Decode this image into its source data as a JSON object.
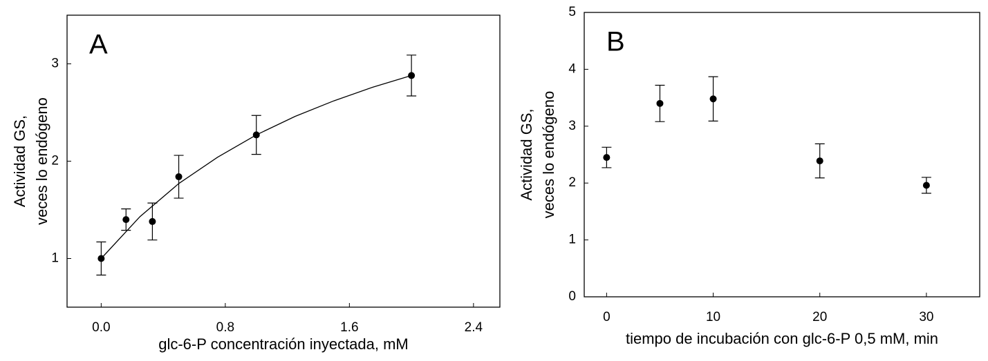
{
  "chart_data": [
    {
      "type": "scatter",
      "title": "A",
      "x_label": "glc-6-P concentración inyectada, mM",
      "y_label": [
        "Actividad GS,",
        "veces lo endógeno"
      ],
      "x": [
        0.0,
        0.16,
        0.33,
        0.5,
        1.0,
        2.0
      ],
      "series": [
        {
          "color": "#000000",
          "values": [
            1.0,
            1.4,
            1.38,
            1.84,
            2.27,
            2.88
          ],
          "errors": [
            0.17,
            0.11,
            0.19,
            0.22,
            0.2,
            0.21
          ]
        }
      ],
      "fit": {
        "x": [
          0,
          0.25,
          0.5,
          0.75,
          1,
          1.25,
          1.5,
          1.75,
          2
        ],
        "values": [
          1,
          1.43,
          1.77,
          2.04,
          2.27,
          2.46,
          2.62,
          2.76,
          2.88
        ]
      },
      "xlim": [
        -0.22,
        2.57
      ],
      "ylim": [
        0.5,
        3.5
      ],
      "xticks": [
        {
          "value": 0,
          "label": "0.0"
        },
        0.8,
        1.6,
        2.4
      ],
      "yticks": [
        1,
        2,
        3
      ]
    },
    {
      "type": "scatter",
      "title": "B",
      "x_label": "tiempo de incubación con glc-6-P 0,5 mM, min",
      "y_label": [
        "Actividad GS,",
        "veces lo endógeno"
      ],
      "x": [
        0,
        5,
        10,
        20,
        30
      ],
      "series": [
        {
          "color": "#000000",
          "values": [
            2.45,
            3.4,
            3.48,
            2.39,
            1.96
          ],
          "errors": [
            0.18,
            0.32,
            0.39,
            0.3,
            0.14
          ]
        }
      ],
      "xlim": [
        -2.1,
        35
      ],
      "ylim": [
        0,
        5
      ],
      "xticks": [
        0,
        10,
        20,
        30
      ],
      "yticks": [
        0,
        1,
        2,
        3,
        4,
        5
      ]
    }
  ]
}
